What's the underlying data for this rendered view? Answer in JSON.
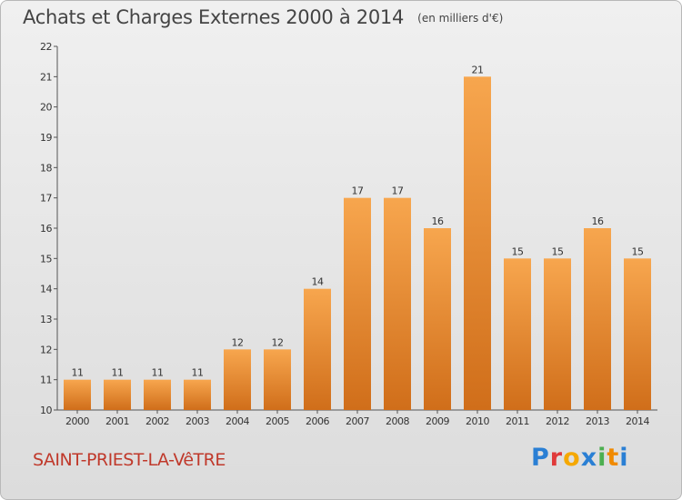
{
  "header": {
    "title": "Achats et Charges Externes 2000 à 2014",
    "unit": "(en milliers d'€)"
  },
  "footer": {
    "commune": "SAINT-PRIEST-LA-VêTRE",
    "brand_letters": [
      "P",
      "r",
      "o",
      "x",
      "i",
      "t",
      "i"
    ],
    "brand_colors": [
      "#2a7fd4",
      "#e03a3a",
      "#f5a800",
      "#2a7fd4",
      "#4caf50",
      "#f08a00",
      "#2a7fd4"
    ]
  },
  "chart_data": {
    "type": "bar",
    "title": "Achats et Charges Externes 2000 à 2014",
    "xlabel": "",
    "ylabel": "",
    "categories": [
      "2000",
      "2001",
      "2002",
      "2003",
      "2004",
      "2005",
      "2006",
      "2007",
      "2008",
      "2009",
      "2010",
      "2011",
      "2012",
      "2013",
      "2014"
    ],
    "values": [
      11,
      11,
      11,
      11,
      12,
      12,
      14,
      17,
      17,
      16,
      21,
      15,
      15,
      16,
      15
    ],
    "ylim": [
      10,
      22
    ],
    "yticks": [
      "10",
      "11",
      "12",
      "13",
      "14",
      "15",
      "16",
      "17",
      "18",
      "19",
      "20",
      "21",
      "22"
    ],
    "grid": false,
    "bar_color_top": "#f7a64e",
    "bar_color_bottom": "#d06e1a"
  }
}
